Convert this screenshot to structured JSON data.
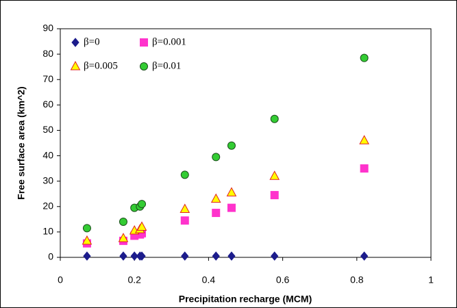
{
  "chart_data": {
    "type": "scatter",
    "x_label": "Precipitation recharge (MCM)",
    "y_label": "Free surface area (km^2)",
    "x": [
      0.072,
      0.17,
      0.2,
      0.215,
      0.22,
      0.336,
      0.42,
      0.462,
      0.578,
      0.82
    ],
    "series": [
      {
        "name": "β=0",
        "color": "#1c1c8c",
        "marker": "diamond",
        "values": [
          0.5,
          0.5,
          0.5,
          0.5,
          0.5,
          0.5,
          0.5,
          0.5,
          0.5,
          0.5
        ]
      },
      {
        "name": "β=0.001",
        "color": "#ff33cc",
        "marker": "square",
        "values": [
          5.5,
          6.5,
          8.5,
          9,
          9.5,
          14.5,
          17.5,
          19.5,
          24.5,
          35
        ]
      },
      {
        "name": "β=0.005",
        "color": "#ffff00",
        "edgecolor": "#e02020",
        "marker": "triangle",
        "values": [
          6.5,
          7.5,
          10.5,
          11,
          12,
          19,
          23,
          25.5,
          32,
          46
        ]
      },
      {
        "name": "β=0.01",
        "color": "#33cc33",
        "edgecolor": "#1a4d1a",
        "marker": "circle",
        "values": [
          11.5,
          14,
          19.5,
          20,
          21,
          32.5,
          39.5,
          44,
          54.5,
          78.5
        ]
      }
    ],
    "xlim": [
      0,
      1
    ],
    "xticks": [
      0,
      0.2,
      0.4,
      0.6,
      0.8,
      1
    ],
    "ylim": [
      0,
      90
    ],
    "yticks": [
      0,
      10,
      20,
      30,
      40,
      50,
      60,
      70,
      80,
      90
    ],
    "legend": "upper left"
  }
}
